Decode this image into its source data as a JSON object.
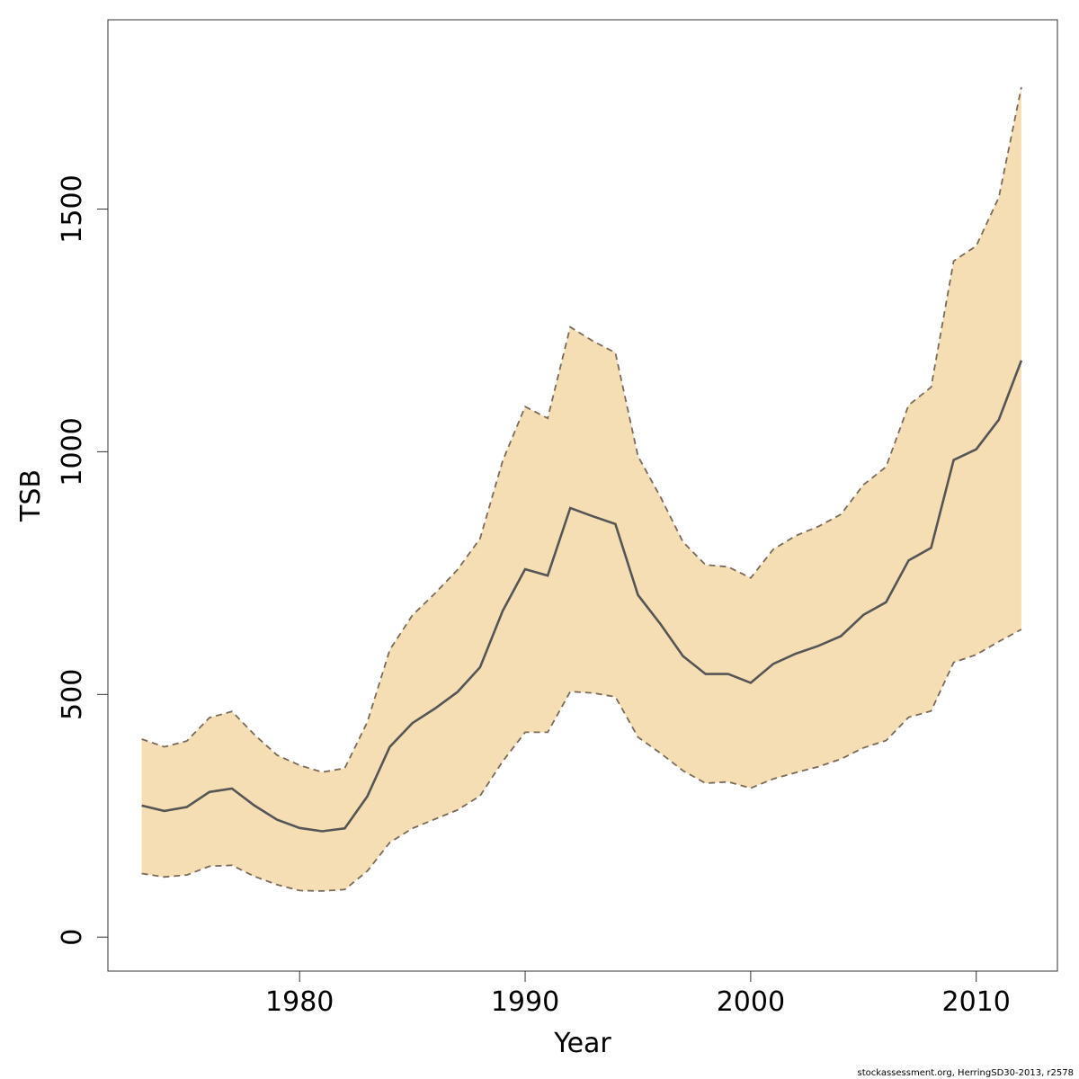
{
  "chart_data": {
    "type": "area",
    "xlabel": "Year",
    "ylabel": "TSB",
    "xlim": [
      1971.5,
      2013.6
    ],
    "ylim": [
      -70,
      1890
    ],
    "x_ticks": [
      1980,
      1990,
      2000,
      2010
    ],
    "y_ticks": [
      0,
      500,
      1000,
      1500
    ],
    "grid": false,
    "legend": "none",
    "colors": {
      "band_fill": "#F5DEB3",
      "estimate_line": "#555555",
      "bound_line": "#7a6a5a"
    },
    "x": [
      1973,
      1974,
      1975,
      1976,
      1977,
      1978,
      1979,
      1980,
      1981,
      1982,
      1983,
      1984,
      1985,
      1986,
      1987,
      1988,
      1989,
      1990,
      1991,
      1992,
      1993,
      1994,
      1995,
      1996,
      1997,
      1998,
      1999,
      2000,
      2001,
      2002,
      2003,
      2004,
      2005,
      2006,
      2007,
      2008,
      2009,
      2010,
      2011,
      2012
    ],
    "series": [
      {
        "role": "estimate",
        "values": [
          271,
          260,
          268,
          299,
          306,
          271,
          242,
          225,
          218,
          224,
          290,
          392,
          441,
          471,
          505,
          556,
          672,
          758,
          745,
          884,
          867,
          851,
          705,
          645,
          579,
          542,
          542,
          524,
          563,
          584,
          600,
          620,
          664,
          690,
          776,
          802,
          983,
          1005,
          1066,
          1188
        ]
      },
      {
        "role": "lower",
        "values": [
          131,
          124,
          128,
          146,
          148,
          125,
          108,
          96,
          95,
          98,
          136,
          195,
          224,
          243,
          262,
          291,
          362,
          422,
          422,
          506,
          503,
          495,
          412,
          379,
          343,
          317,
          320,
          307,
          326,
          339,
          351,
          367,
          390,
          405,
          453,
          466,
          566,
          582,
          609,
          634
        ]
      },
      {
        "role": "upper",
        "values": [
          408,
          392,
          404,
          452,
          465,
          417,
          375,
          354,
          340,
          348,
          443,
          592,
          663,
          708,
          757,
          821,
          981,
          1093,
          1069,
          1257,
          1228,
          1204,
          991,
          907,
          814,
          767,
          763,
          740,
          799,
          827,
          846,
          871,
          932,
          969,
          1096,
          1133,
          1393,
          1424,
          1524,
          1751
        ]
      }
    ]
  },
  "footer": {
    "credit": "stockassessment.org, HerringSD30-2013, r2578"
  }
}
